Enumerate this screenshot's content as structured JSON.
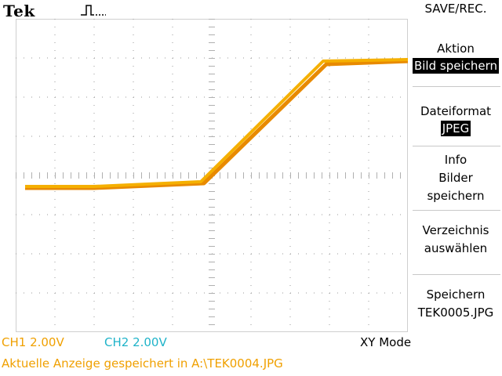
{
  "brand": "Tek",
  "menu": {
    "title": "SAVE/REC.",
    "items": [
      {
        "id": "action",
        "label": "Aktion",
        "value": "Bild speichern"
      },
      {
        "id": "format",
        "label": "Dateiformat",
        "value": "JPEG"
      },
      {
        "id": "info",
        "lines": [
          "Info",
          "Bilder",
          "speichern"
        ]
      },
      {
        "id": "folder",
        "lines": [
          "Verzeichnis",
          "auswählen"
        ]
      },
      {
        "id": "save",
        "lines": [
          "Speichern",
          "TEK0005.JPG"
        ]
      }
    ]
  },
  "status": {
    "ch1": "CH1  2.00V",
    "ch2": "CH2  2.00V",
    "mode": "XY Mode"
  },
  "message": "Aktuelle Anzeige gespeichert in A:\\TEK0004.JPG",
  "colors": {
    "trace": "#f5b000",
    "trace_dark": "#e88a00",
    "ch1": "#f0a000",
    "ch2": "#1fb3c9",
    "menu_highlight_bg": "#000000"
  },
  "trace_icon": "trigger-pulse-icon"
}
